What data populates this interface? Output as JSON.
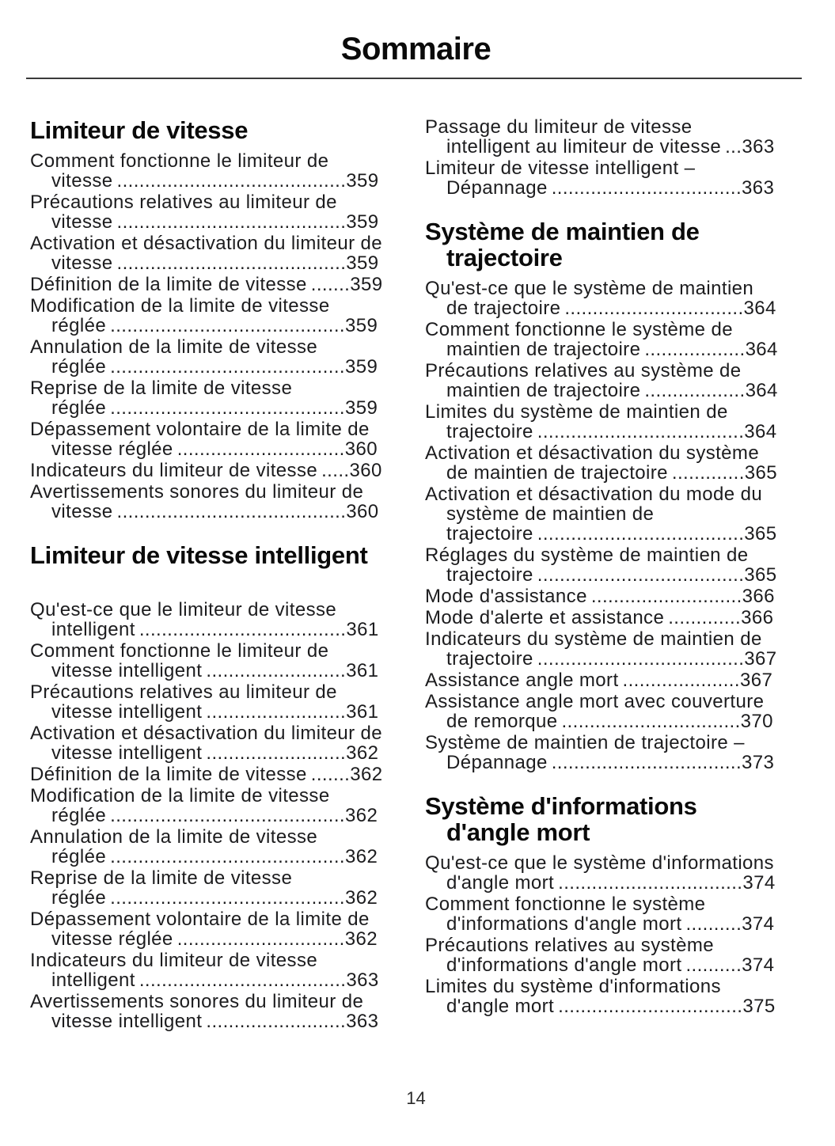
{
  "page": {
    "title": "Sommaire",
    "footer_page_number": "14"
  },
  "columns": {
    "left": {
      "sections": [
        {
          "heading": "Limiteur de vitesse",
          "entries": [
            {
              "title": "Comment fonctionne le limiteur de vitesse",
              "page": "359"
            },
            {
              "title": "Précautions relatives au limiteur de vitesse",
              "page": "359"
            },
            {
              "title": "Activation et désactivation du limiteur de vitesse",
              "page": "359"
            },
            {
              "title": "Définition de la limite de vitesse",
              "page": "359"
            },
            {
              "title": "Modification de la limite de vitesse réglée",
              "page": "359"
            },
            {
              "title": "Annulation de la limite de vitesse réglée",
              "page": "359"
            },
            {
              "title": "Reprise de la limite de vitesse réglée",
              "page": "359"
            },
            {
              "title": "Dépassement volontaire de la limite de vitesse réglée",
              "page": "360"
            },
            {
              "title": "Indicateurs du limiteur de vitesse",
              "page": "360"
            },
            {
              "title": "Avertissements sonores du limiteur de vitesse",
              "page": "360"
            }
          ]
        },
        {
          "heading": "Limiteur de vitesse intelligent",
          "entries": [
            {
              "title": "Qu'est-ce que le limiteur de vitesse intelligent",
              "page": "361"
            },
            {
              "title": "Comment fonctionne le limiteur de vitesse intelligent",
              "page": "361"
            },
            {
              "title": "Précautions relatives au limiteur de vitesse intelligent",
              "page": "361"
            },
            {
              "title": "Activation et désactivation du limiteur de vitesse intelligent",
              "page": "362"
            },
            {
              "title": "Définition de la limite de vitesse",
              "page": "362"
            },
            {
              "title": "Modification de la limite de vitesse réglée",
              "page": "362"
            },
            {
              "title": "Annulation de la limite de vitesse réglée",
              "page": "362"
            },
            {
              "title": "Reprise de la limite de vitesse réglée",
              "page": "362"
            },
            {
              "title": "Dépassement volontaire de la limite de vitesse réglée",
              "page": "362"
            },
            {
              "title": "Indicateurs du limiteur de vitesse intelligent",
              "page": "363"
            },
            {
              "title": "Avertissements sonores du limiteur de vitesse intelligent",
              "page": "363"
            }
          ]
        }
      ]
    },
    "right": {
      "sections": [
        {
          "heading": "",
          "entries": [
            {
              "title": "Passage du limiteur de vitesse intelligent au limiteur de vitesse",
              "page": "363"
            },
            {
              "title": "Limiteur de vitesse intelligent – Dépannage",
              "page": "363"
            }
          ]
        },
        {
          "heading": "Système de maintien de trajectoire",
          "entries": [
            {
              "title": "Qu'est-ce que le système de maintien de trajectoire",
              "page": "364"
            },
            {
              "title": "Comment fonctionne le système de maintien de trajectoire",
              "page": "364"
            },
            {
              "title": "Précautions relatives au système de maintien de trajectoire",
              "page": "364"
            },
            {
              "title": "Limites du système de maintien de trajectoire",
              "page": "364"
            },
            {
              "title": "Activation et désactivation du système de maintien de trajectoire",
              "page": "365"
            },
            {
              "title": "Activation et désactivation du mode du système de maintien de trajectoire",
              "page": "365"
            },
            {
              "title": "Réglages du système de maintien de trajectoire",
              "page": "365"
            },
            {
              "title": "Mode d'assistance",
              "page": "366"
            },
            {
              "title": "Mode d'alerte et assistance",
              "page": "366"
            },
            {
              "title": "Indicateurs du système de maintien de trajectoire",
              "page": "367"
            },
            {
              "title": "Assistance angle mort",
              "page": "367"
            },
            {
              "title": "Assistance angle mort avec couverture de remorque",
              "page": "370"
            },
            {
              "title": "Système de maintien de trajectoire – Dépannage",
              "page": "373"
            }
          ]
        },
        {
          "heading": "Système d'informations d'angle mort",
          "entries": [
            {
              "title": "Qu'est-ce que le système d'informations d'angle mort",
              "page": "374"
            },
            {
              "title": "Comment fonctionne le système d'informations d'angle mort",
              "page": "374"
            },
            {
              "title": "Précautions relatives au système d'informations d'angle mort",
              "page": "374"
            },
            {
              "title": "Limites du système d'informations d'angle mort",
              "page": "375"
            }
          ]
        }
      ]
    }
  }
}
